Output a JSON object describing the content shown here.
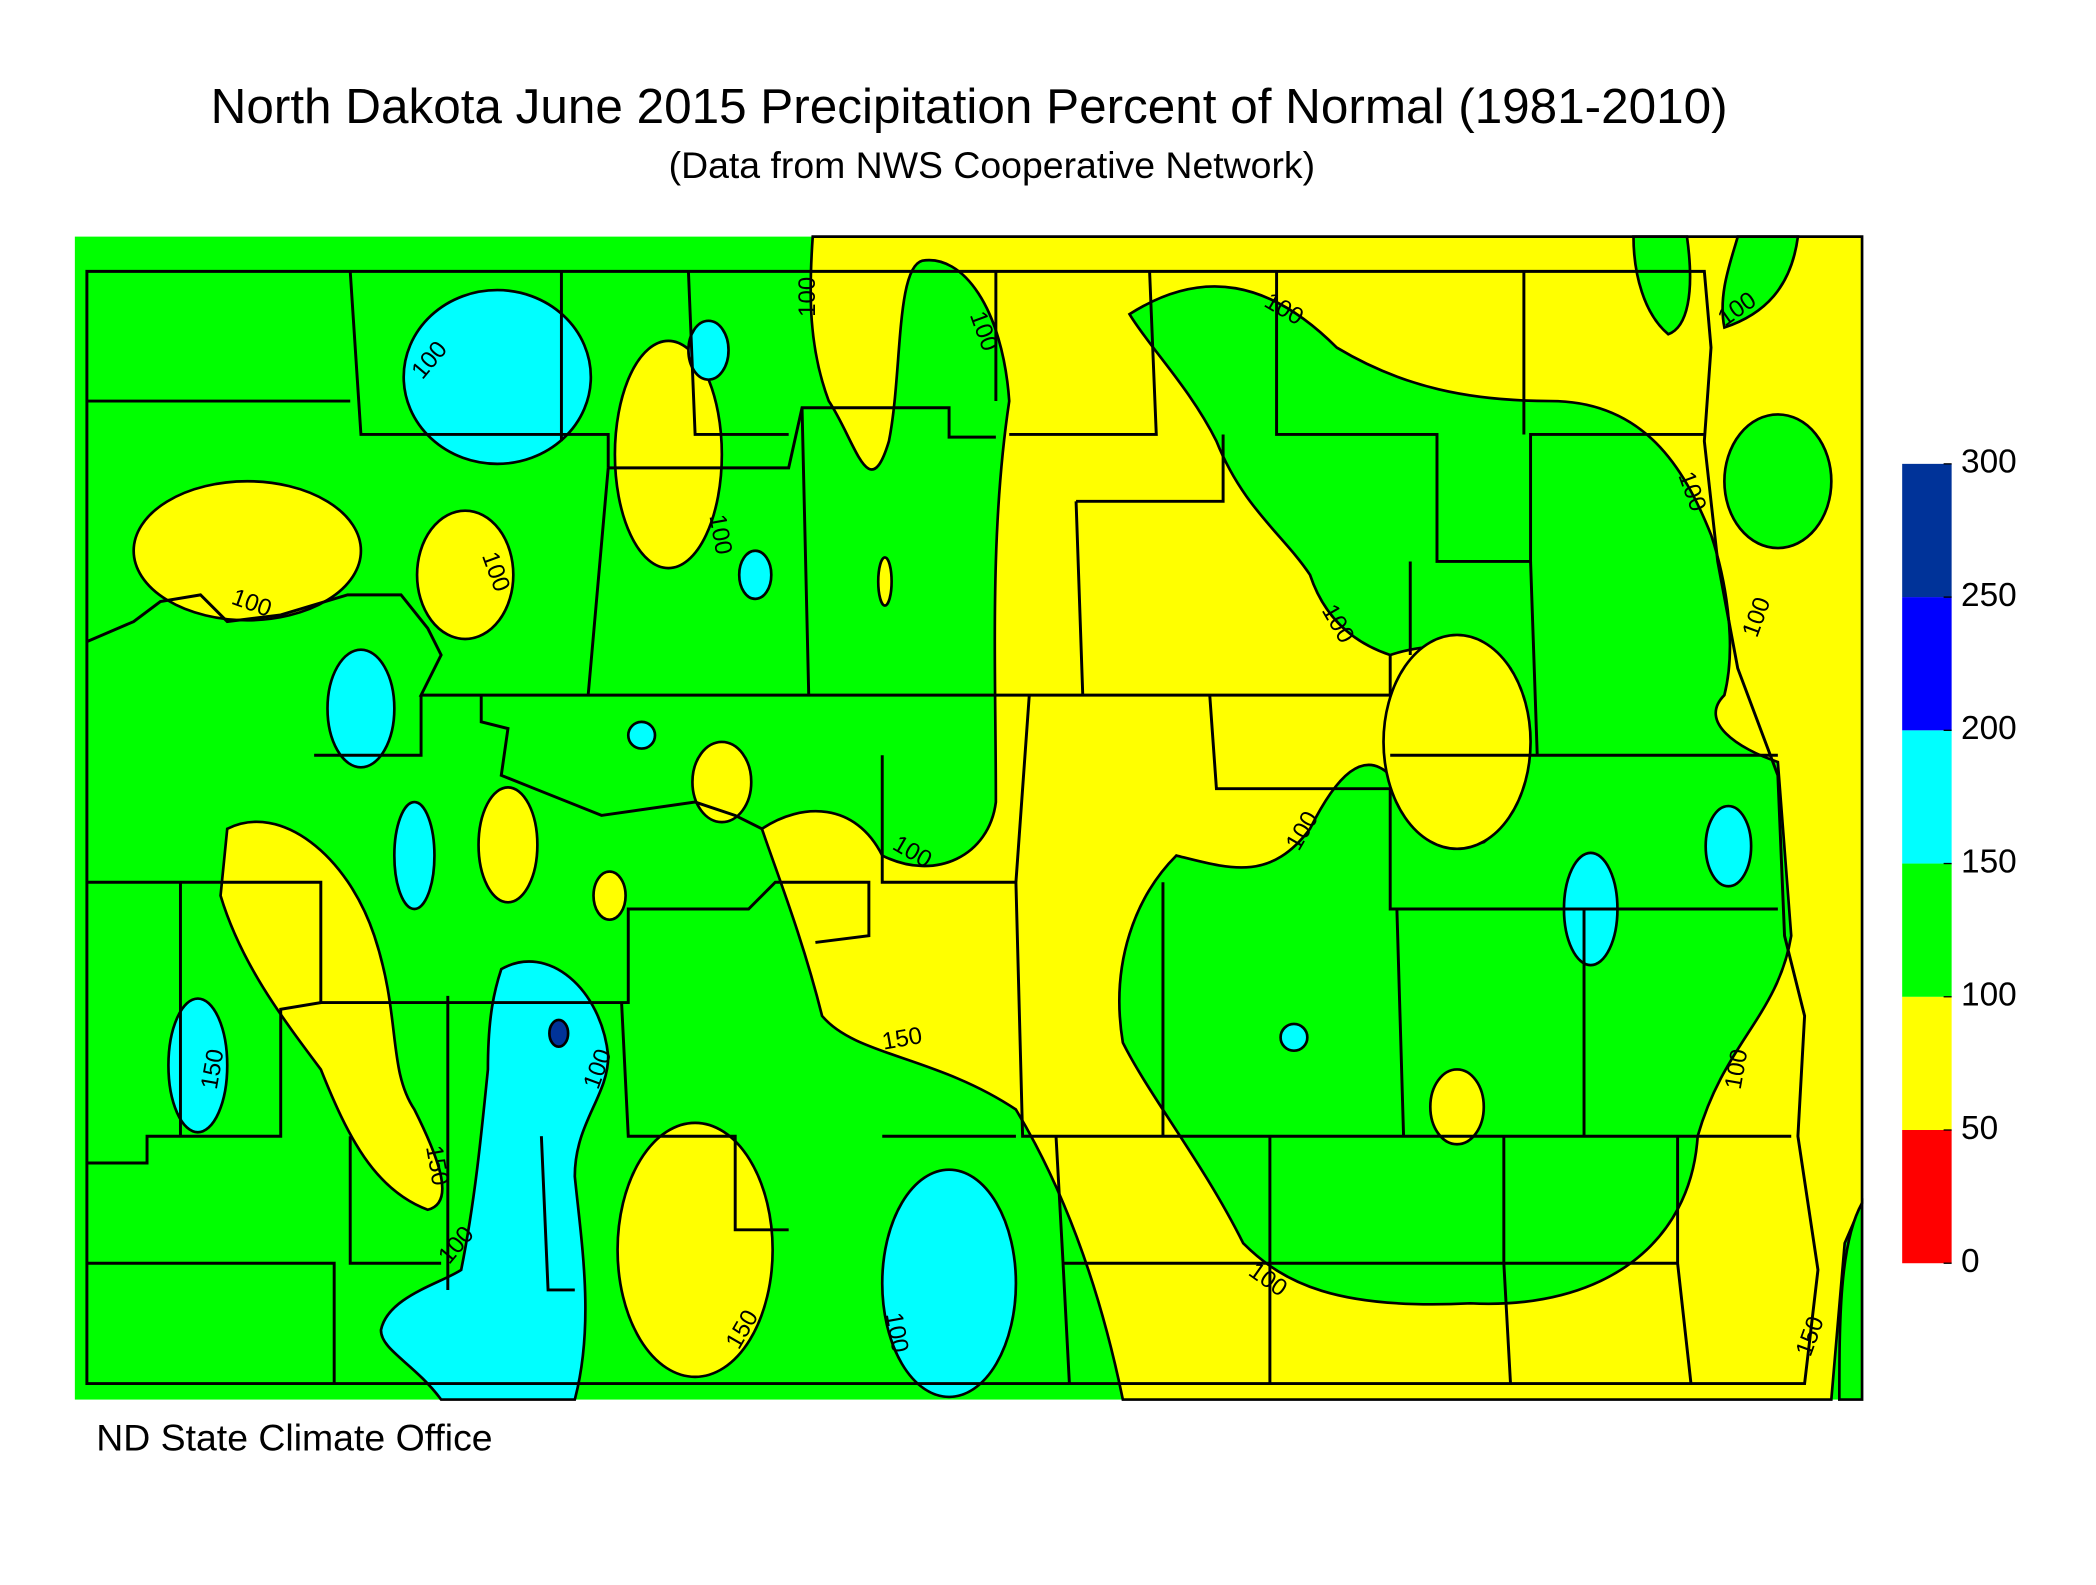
{
  "title": "North Dakota June 2015 Precipitation Percent of Normal (1981-2010)",
  "subtitle": "(Data from NWS Cooperative Network)",
  "credit": "ND State Climate Office",
  "legend": {
    "ticks": [
      0,
      50,
      100,
      150,
      200,
      250,
      300
    ],
    "colors": [
      "#ff0000",
      "#ffff00",
      "#00ff00",
      "#00ffff",
      "#0000ff",
      "#003399"
    ]
  },
  "contour_labels": [
    100,
    150,
    100,
    100,
    100,
    100,
    100,
    100,
    100,
    100,
    100,
    100,
    100,
    100,
    150,
    150,
    100,
    150,
    100,
    150,
    100,
    100,
    100
  ]
}
